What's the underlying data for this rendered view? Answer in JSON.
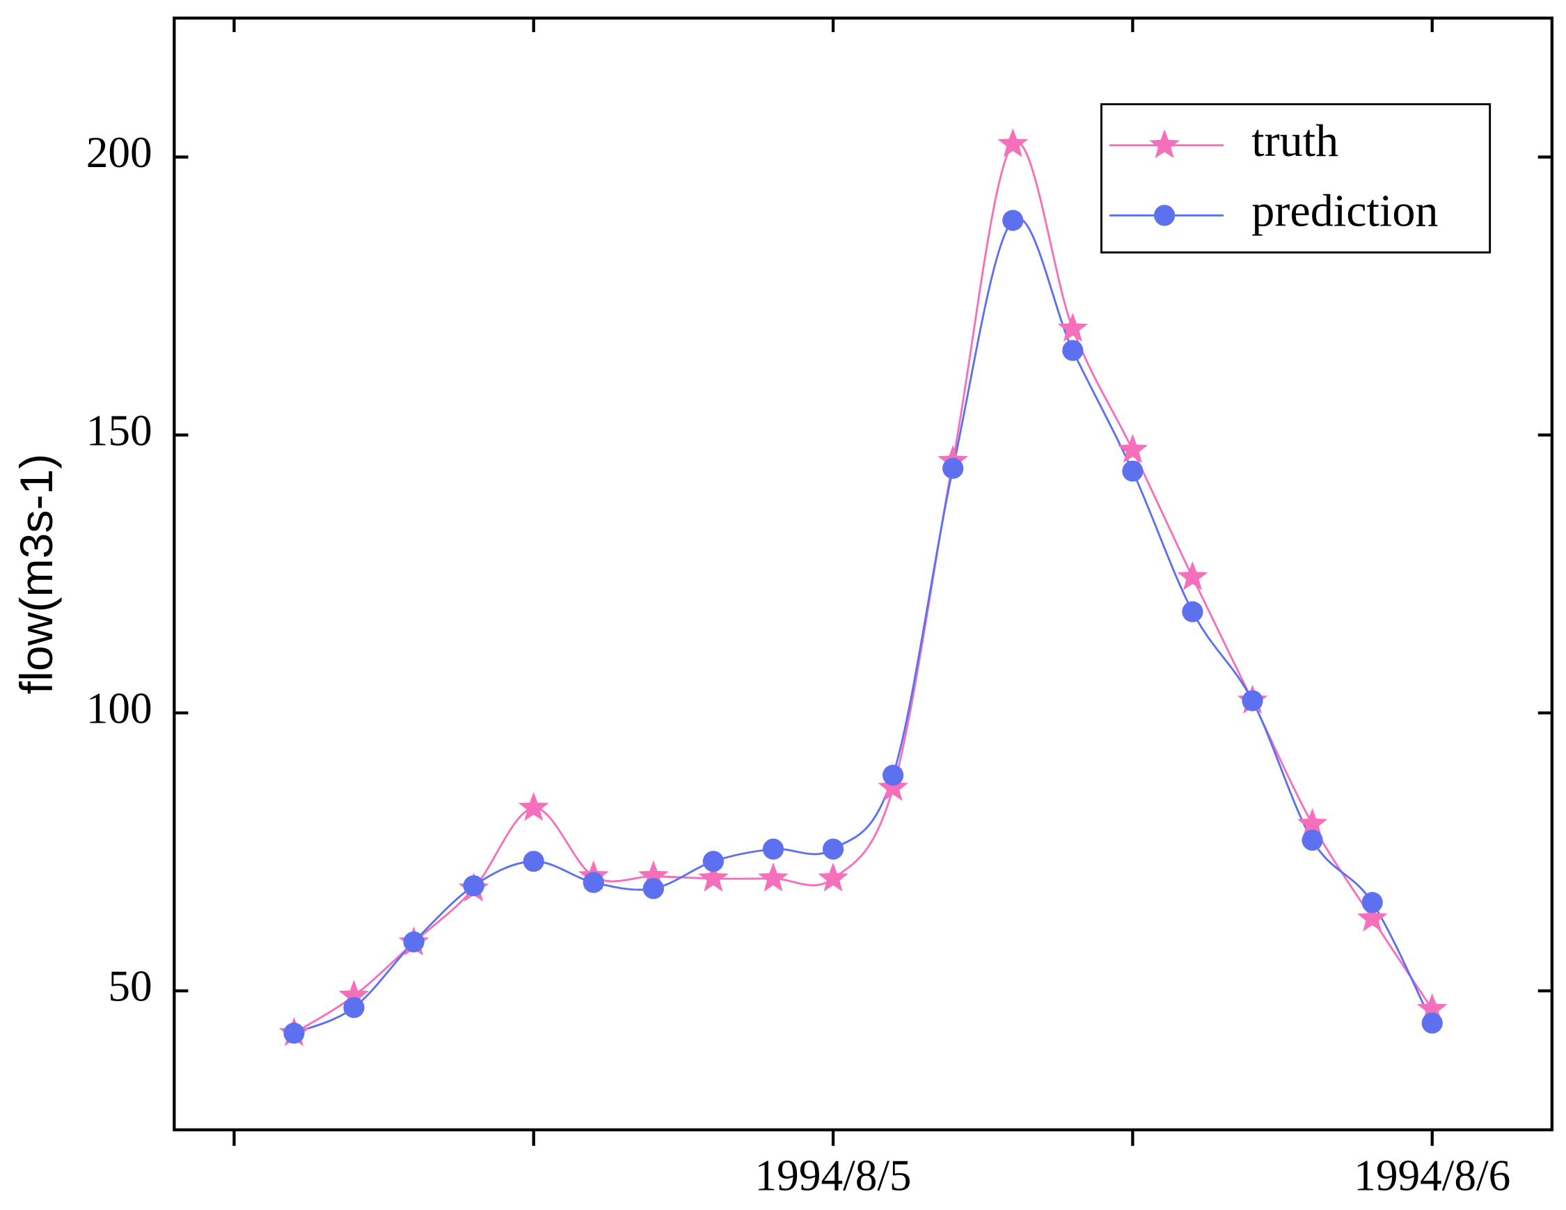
{
  "chart_data": {
    "type": "line",
    "y_label": "flow(m3s-1)",
    "categories": [
      null,
      null,
      null,
      null,
      null,
      null,
      null,
      null,
      null,
      "1994/8/5",
      null,
      null,
      null,
      null,
      null,
      null,
      null,
      null,
      null,
      "1994/8/6"
    ],
    "xlim": [
      -2,
      21
    ],
    "xticks": [
      -1,
      4,
      9,
      14,
      19
    ],
    "ylim": [
      25,
      225
    ],
    "yticks": [
      50,
      100,
      150,
      200
    ],
    "legend": "upper right",
    "series": [
      {
        "name": "truth",
        "color": "#f66fbb",
        "marker": "star",
        "values": [
          42.4,
          49.1,
          58.7,
          68.4,
          82.9,
          70.6,
          70.6,
          70.2,
          70.2,
          70.2,
          86.5,
          145.3,
          202.3,
          169.1,
          147.3,
          124.4,
          102.2,
          80.0,
          63.0,
          46.7
        ]
      },
      {
        "name": "prediction",
        "color": "#5c70f0",
        "marker": "circle",
        "values": [
          42.4,
          47.0,
          58.8,
          68.9,
          73.3,
          69.5,
          68.4,
          73.3,
          75.5,
          75.5,
          88.8,
          144.0,
          188.6,
          165.2,
          143.5,
          118.2,
          102.2,
          77.1,
          65.9,
          44.2
        ]
      }
    ]
  }
}
